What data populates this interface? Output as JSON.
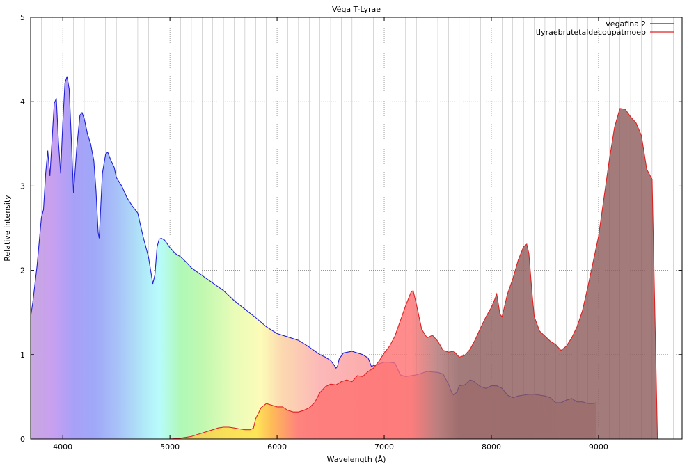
{
  "chart_data": {
    "type": "area",
    "title": "Véga T-Lyrae",
    "xlabel": "Wavelength (Å)",
    "ylabel": "Relative intensity",
    "xlim": [
      3700,
      9780
    ],
    "ylim": [
      0,
      5
    ],
    "x_ticks": [
      4000,
      5000,
      6000,
      7000,
      8000,
      9000
    ],
    "y_ticks": [
      0,
      1,
      2,
      3,
      4,
      5
    ],
    "grid": true,
    "legend_position": "top-right",
    "series": [
      {
        "name": "vega_final2",
        "legend_label": "vegafinal2",
        "legend_sub": "f",
        "color": "#1f1fd6",
        "fill": "visible-spectrum",
        "x": [
          3700,
          3720,
          3760,
          3800,
          3820,
          3840,
          3860,
          3880,
          3900,
          3920,
          3940,
          3960,
          3980,
          4000,
          4020,
          4040,
          4060,
          4080,
          4100,
          4130,
          4160,
          4180,
          4200,
          4230,
          4260,
          4290,
          4310,
          4330,
          4340,
          4350,
          4370,
          4400,
          4420,
          4450,
          4480,
          4500,
          4550,
          4600,
          4650,
          4700,
          4750,
          4800,
          4820,
          4840,
          4860,
          4880,
          4900,
          4920,
          4950,
          5000,
          5050,
          5100,
          5150,
          5200,
          5300,
          5400,
          5500,
          5600,
          5700,
          5800,
          5900,
          6000,
          6100,
          6200,
          6300,
          6400,
          6450,
          6500,
          6530,
          6550,
          6563,
          6580,
          6620,
          6700,
          6800,
          6850,
          6880,
          6900,
          6950,
          7000,
          7050,
          7100,
          7150,
          7200,
          7250,
          7300,
          7400,
          7500,
          7550,
          7600,
          7630,
          7650,
          7680,
          7700,
          7750,
          7800,
          7830,
          7860,
          7900,
          7950,
          8000,
          8050,
          8100,
          8150,
          8200,
          8250,
          8300,
          8350,
          8400,
          8450,
          8500,
          8550,
          8600,
          8650,
          8700,
          8750,
          8800,
          8850,
          8900,
          8950,
          8980
        ],
        "y": [
          1.45,
          1.62,
          2.05,
          2.62,
          2.72,
          3.15,
          3.42,
          3.12,
          3.55,
          3.98,
          4.04,
          3.52,
          3.15,
          3.75,
          4.22,
          4.3,
          4.15,
          3.55,
          2.92,
          3.45,
          3.84,
          3.87,
          3.8,
          3.62,
          3.5,
          3.3,
          2.95,
          2.45,
          2.38,
          2.65,
          3.15,
          3.38,
          3.4,
          3.3,
          3.22,
          3.1,
          3.0,
          2.86,
          2.76,
          2.68,
          2.4,
          2.16,
          2.0,
          1.84,
          1.95,
          2.28,
          2.37,
          2.38,
          2.36,
          2.27,
          2.2,
          2.16,
          2.1,
          2.03,
          1.94,
          1.85,
          1.76,
          1.64,
          1.54,
          1.44,
          1.33,
          1.25,
          1.21,
          1.17,
          1.09,
          1.0,
          0.97,
          0.93,
          0.88,
          0.84,
          0.86,
          0.95,
          1.02,
          1.04,
          1.0,
          0.96,
          0.86,
          0.87,
          0.89,
          0.91,
          0.91,
          0.9,
          0.76,
          0.74,
          0.75,
          0.76,
          0.8,
          0.79,
          0.77,
          0.65,
          0.55,
          0.52,
          0.56,
          0.63,
          0.64,
          0.7,
          0.69,
          0.66,
          0.62,
          0.6,
          0.63,
          0.63,
          0.6,
          0.52,
          0.49,
          0.51,
          0.52,
          0.53,
          0.53,
          0.52,
          0.51,
          0.49,
          0.43,
          0.43,
          0.46,
          0.48,
          0.44,
          0.44,
          0.42,
          0.42,
          0.43
        ]
      },
      {
        "name": "tlyrae_brut_etal_decoup_atmo_ep",
        "legend_label": "tlyraebrutetaldecoupatmoep",
        "color": "#e02020",
        "fill": "wavelength-tint",
        "x": [
          4800,
          5000,
          5100,
          5150,
          5200,
          5250,
          5300,
          5400,
          5450,
          5500,
          5550,
          5600,
          5650,
          5700,
          5750,
          5780,
          5800,
          5850,
          5900,
          5950,
          6000,
          6050,
          6100,
          6150,
          6200,
          6250,
          6300,
          6350,
          6400,
          6450,
          6500,
          6550,
          6600,
          6650,
          6700,
          6750,
          6800,
          6850,
          6900,
          6950,
          7000,
          7050,
          7100,
          7150,
          7200,
          7250,
          7270,
          7300,
          7350,
          7400,
          7450,
          7500,
          7550,
          7600,
          7650,
          7700,
          7750,
          7800,
          7850,
          7900,
          7950,
          8000,
          8030,
          8050,
          8080,
          8100,
          8150,
          8200,
          8250,
          8300,
          8330,
          8350,
          8380,
          8400,
          8450,
          8500,
          8550,
          8600,
          8650,
          8700,
          8750,
          8800,
          8850,
          8900,
          8950,
          9000,
          9050,
          9100,
          9150,
          9200,
          9250,
          9300,
          9350,
          9400,
          9450,
          9500,
          9550,
          9600,
          9650,
          9700,
          9750,
          9770
        ],
        "y": [
          0.0,
          0.0,
          0.01,
          0.02,
          0.03,
          0.05,
          0.07,
          0.11,
          0.13,
          0.14,
          0.14,
          0.13,
          0.12,
          0.11,
          0.11,
          0.13,
          0.24,
          0.37,
          0.42,
          0.4,
          0.38,
          0.38,
          0.34,
          0.32,
          0.32,
          0.34,
          0.37,
          0.43,
          0.55,
          0.62,
          0.65,
          0.64,
          0.68,
          0.7,
          0.68,
          0.75,
          0.74,
          0.8,
          0.84,
          0.92,
          1.02,
          1.1,
          1.22,
          1.4,
          1.58,
          1.74,
          1.76,
          1.6,
          1.3,
          1.2,
          1.23,
          1.16,
          1.05,
          1.03,
          1.04,
          0.97,
          0.99,
          1.06,
          1.18,
          1.32,
          1.45,
          1.56,
          1.65,
          1.72,
          1.48,
          1.45,
          1.72,
          1.9,
          2.12,
          2.28,
          2.31,
          2.2,
          1.72,
          1.45,
          1.28,
          1.22,
          1.16,
          1.12,
          1.05,
          1.1,
          1.2,
          1.33,
          1.52,
          1.8,
          2.1,
          2.4,
          2.85,
          3.3,
          3.7,
          3.92,
          3.91,
          3.82,
          3.75,
          3.6,
          3.2,
          3.08,
          0.0,
          0.0,
          0.0,
          0.0,
          0.0,
          0.0
        ]
      }
    ]
  }
}
